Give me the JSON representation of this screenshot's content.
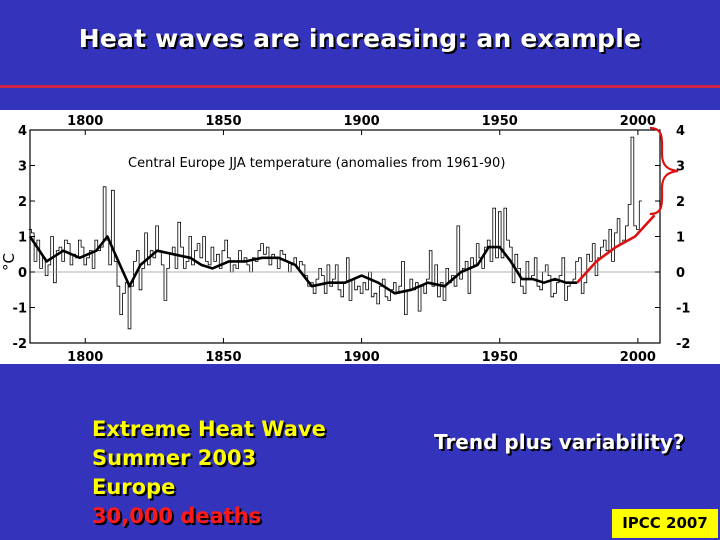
{
  "slide": {
    "title": "Heat waves are increasing: an example",
    "heat_wave_lines": [
      "Extreme Heat Wave",
      "Summer 2003",
      "Europe"
    ],
    "deaths": "30,000 deaths",
    "question": "Trend plus variability?",
    "source": "IPCC 2007"
  },
  "colors": {
    "background": "#3333bb",
    "rule": "#cc2244",
    "highlight_text": "#ffff00",
    "deaths_text": "#ff1a1a",
    "trend_line": "#dd1111",
    "badge": "#ffff00"
  },
  "chart_data": {
    "type": "line",
    "title": "Central Europe JJA temperature (anomalies from 1961-90)",
    "ylabel": "°C",
    "xlim": [
      1780,
      2008
    ],
    "ylim": [
      -2,
      4
    ],
    "x_ticks": [
      1800,
      1850,
      1900,
      1950,
      2000
    ],
    "y_ticks": [
      -2,
      -1,
      0,
      1,
      2,
      3,
      4
    ],
    "grid": false,
    "zero_line": true,
    "annual_series": {
      "start_year": 1780,
      "values": [
        1.2,
        1.1,
        0.3,
        0.9,
        0.1,
        0.4,
        -0.1,
        0.2,
        1.0,
        -0.3,
        0.6,
        0.7,
        0.3,
        0.9,
        0.8,
        0.2,
        0.5,
        0.4,
        0.9,
        0.7,
        0.2,
        0.4,
        0.6,
        0.1,
        0.9,
        0.6,
        0.7,
        2.4,
        0.9,
        0.2,
        2.3,
        0.3,
        -0.4,
        -1.2,
        -0.6,
        -0.3,
        -1.6,
        -0.4,
        0.3,
        0.6,
        -0.5,
        0.1,
        1.1,
        0.2,
        0.6,
        0.4,
        1.3,
        0.6,
        0.2,
        -0.8,
        0.1,
        0.5,
        0.7,
        0.1,
        1.4,
        0.7,
        0.1,
        0.3,
        1.0,
        0.2,
        0.6,
        0.8,
        0.4,
        1.0,
        0.3,
        0.2,
        0.7,
        0.3,
        0.5,
        0.1,
        0.6,
        0.9,
        0.4,
        0.0,
        0.2,
        0.1,
        0.6,
        0.3,
        0.4,
        0.2,
        0.0,
        0.4,
        0.3,
        0.6,
        0.8,
        0.5,
        0.7,
        0.2,
        0.5,
        0.4,
        0.1,
        0.6,
        0.5,
        0.3,
        0.0,
        0.2,
        0.4,
        0.1,
        0.3,
        0.2,
        -0.1,
        -0.4,
        -0.3,
        -0.6,
        -0.2,
        0.1,
        -0.1,
        -0.6,
        0.2,
        -0.4,
        -0.2,
        0.2,
        -0.5,
        -0.7,
        -0.3,
        0.4,
        -0.8,
        -0.2,
        -0.5,
        -0.4,
        -0.6,
        -0.3,
        -0.5,
        0.0,
        -0.7,
        -0.6,
        -0.9,
        -0.4,
        -0.2,
        -0.7,
        -0.8,
        -0.5,
        -0.3,
        -0.6,
        -0.4,
        0.3,
        -1.2,
        -0.5,
        -0.2,
        -0.5,
        -0.3,
        -1.1,
        -0.4,
        -0.6,
        -0.2,
        0.6,
        -0.4,
        0.2,
        -0.7,
        -0.3,
        -0.8,
        0.1,
        -0.3,
        -0.1,
        -0.4,
        1.3,
        -0.2,
        0.1,
        0.3,
        -0.6,
        0.4,
        0.2,
        0.8,
        0.4,
        0.1,
        0.7,
        0.9,
        0.3,
        1.8,
        0.4,
        1.7,
        0.4,
        1.8,
        0.9,
        0.7,
        -0.3,
        0.5,
        0.1,
        -0.4,
        -0.6,
        0.3,
        -0.2,
        -0.1,
        0.4,
        -0.4,
        -0.5,
        0.0,
        0.2,
        -0.1,
        -0.7,
        -0.6,
        -0.3,
        -0.1,
        0.4,
        -0.8,
        -0.4,
        -0.3,
        -0.2,
        0.3,
        0.4,
        -0.6,
        -0.3,
        0.5,
        0.3,
        0.8,
        -0.1,
        0.4,
        0.7,
        0.9,
        0.6,
        1.2,
        0.3,
        1.1,
        1.5,
        0.8,
        0.9,
        1.3,
        1.9,
        3.8,
        1.3,
        1.2,
        2.0
      ]
    },
    "smoothed_series": {
      "x": [
        1780,
        1786,
        1792,
        1798,
        1804,
        1808,
        1812,
        1816,
        1820,
        1826,
        1832,
        1838,
        1842,
        1846,
        1852,
        1858,
        1864,
        1870,
        1876,
        1882,
        1888,
        1894,
        1900,
        1906,
        1912,
        1918,
        1924,
        1930,
        1936,
        1942,
        1946,
        1950,
        1954,
        1958,
        1962,
        1966,
        1970,
        1974,
        1978
      ],
      "y": [
        1.0,
        0.3,
        0.6,
        0.4,
        0.6,
        1.0,
        0.3,
        -0.4,
        0.2,
        0.6,
        0.5,
        0.4,
        0.2,
        0.1,
        0.3,
        0.3,
        0.4,
        0.4,
        0.2,
        -0.4,
        -0.3,
        -0.3,
        -0.1,
        -0.3,
        -0.6,
        -0.5,
        -0.3,
        -0.4,
        0.0,
        0.2,
        0.7,
        0.7,
        0.3,
        -0.2,
        -0.2,
        -0.3,
        -0.2,
        -0.3,
        -0.3
      ]
    },
    "trend_line": {
      "x": [
        1978,
        1985,
        1992,
        1999,
        2006
      ],
      "y": [
        -0.3,
        0.3,
        0.7,
        1.0,
        1.6
      ]
    }
  }
}
